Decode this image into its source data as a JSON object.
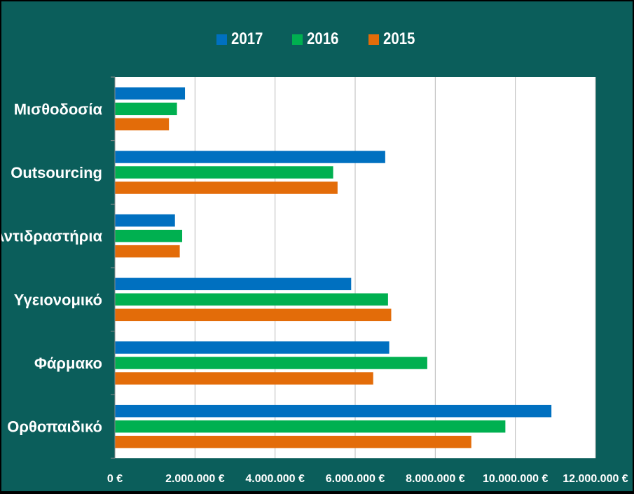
{
  "chart_data": {
    "type": "bar",
    "orientation": "horizontal",
    "categories": [
      "Μισθοδοσία",
      "Outsourcing",
      "Αντιδραστήρια",
      "Υγειονομικό",
      "Φάρμακο",
      "Ορθοπαιδικό"
    ],
    "series": [
      {
        "name": "2017",
        "color": "#0070c0",
        "values": [
          1750000,
          6750000,
          1500000,
          5900000,
          6850000,
          10900000
        ]
      },
      {
        "name": "2016",
        "color": "#00b050",
        "values": [
          1550000,
          5450000,
          1680000,
          6820000,
          7800000,
          9750000
        ]
      },
      {
        "name": "2015",
        "color": "#e36c09",
        "values": [
          1350000,
          5560000,
          1620000,
          6900000,
          6450000,
          8900000
        ]
      }
    ],
    "x_ticks": [
      "0 €",
      "2.000.000 €",
      "4.000.000 €",
      "6.000.000 €",
      "8.000.000 €",
      "10.000.000 €",
      "12.000.000 €"
    ],
    "xlim": [
      0,
      12000000
    ],
    "grid": true,
    "legend_position": "top",
    "background": "#0b5e5b",
    "plot_background": "#ffffff"
  }
}
